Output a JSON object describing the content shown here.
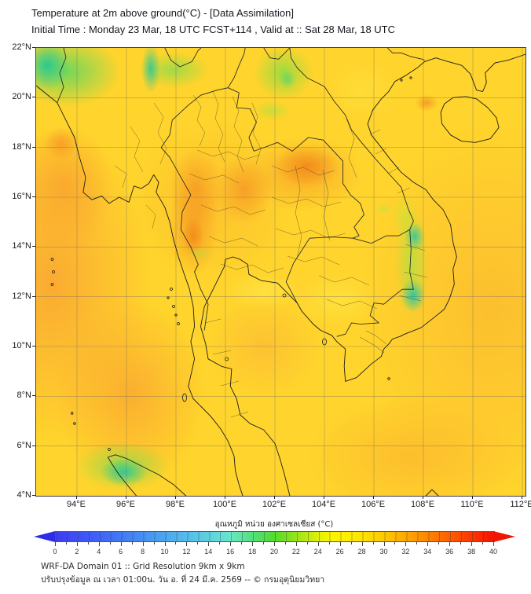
{
  "title": "Temperature at 2m above ground(°C) - [Data Assimilation]",
  "subtitle": "Initial Time : Monday 23 Mar, 18 UTC FCST+114 , Valid at :: Sat 28 Mar, 18 UTC",
  "map": {
    "lat_labels": [
      "22°N",
      "20°N",
      "18°N",
      "16°N",
      "14°N",
      "12°N",
      "10°N",
      "8°N",
      "6°N",
      "4°N"
    ],
    "lon_labels": [
      "94°E",
      "96°E",
      "98°E",
      "100°E",
      "102°E",
      "104°E",
      "106°E",
      "108°E",
      "110°E",
      "112°E"
    ],
    "lat_range_deg": [
      4,
      22
    ],
    "lon_range_deg": [
      94,
      112
    ],
    "grid_interval_deg": 2
  },
  "colorbar": {
    "label": "อุณหภูมิ หน่วย องศาเซลเซียส (°C)",
    "min": 0,
    "max": 40,
    "labeled_tick_step": 2,
    "minor_tick_step": 1,
    "ticks": [
      0,
      2,
      4,
      6,
      8,
      10,
      12,
      14,
      16,
      18,
      20,
      22,
      24,
      26,
      28,
      30,
      32,
      34,
      36,
      38,
      40
    ],
    "gradient_stops": [
      {
        "value": 0,
        "color": "#3d3bf3"
      },
      {
        "value": 4,
        "color": "#3f64f7"
      },
      {
        "value": 8,
        "color": "#4590f4"
      },
      {
        "value": 12,
        "color": "#54bdea"
      },
      {
        "value": 16,
        "color": "#69e6c4"
      },
      {
        "value": 18,
        "color": "#52df7a"
      },
      {
        "value": 20,
        "color": "#53dc2b"
      },
      {
        "value": 22,
        "color": "#9ce418"
      },
      {
        "value": 24,
        "color": "#e0f107"
      },
      {
        "value": 26,
        "color": "#fff200"
      },
      {
        "value": 28,
        "color": "#ffe200"
      },
      {
        "value": 30,
        "color": "#ffc800"
      },
      {
        "value": 32,
        "color": "#ffa800"
      },
      {
        "value": 34,
        "color": "#ff8400"
      },
      {
        "value": 36,
        "color": "#ff5e00"
      },
      {
        "value": 38,
        "color": "#fc3500"
      },
      {
        "value": 40,
        "color": "#f31200"
      }
    ]
  },
  "footer": {
    "line1": "WRF-DA Domain 01 :: Grid Resolution 9km x 9km",
    "line2": "ปรับปรุงข้อมูล ณ เวลา 01:00น. วัน อ. ที่ 24 มี.ค. 2569 -- © กรมอุตุนิยมวิทยา"
  },
  "colors": {
    "title_text": "#14181f",
    "axis_text": "#1a1a1a",
    "coastline": "#1c1c1c",
    "land_base": "#ffd42c",
    "sea_warm": "#fba93a",
    "hot_core": "#f08a1e",
    "cool_teal": "#2cc9a1",
    "cool_green": "#5ad760",
    "cbar_arrow_left": "#2d2de8",
    "cbar_arrow_right": "#ee1503"
  }
}
